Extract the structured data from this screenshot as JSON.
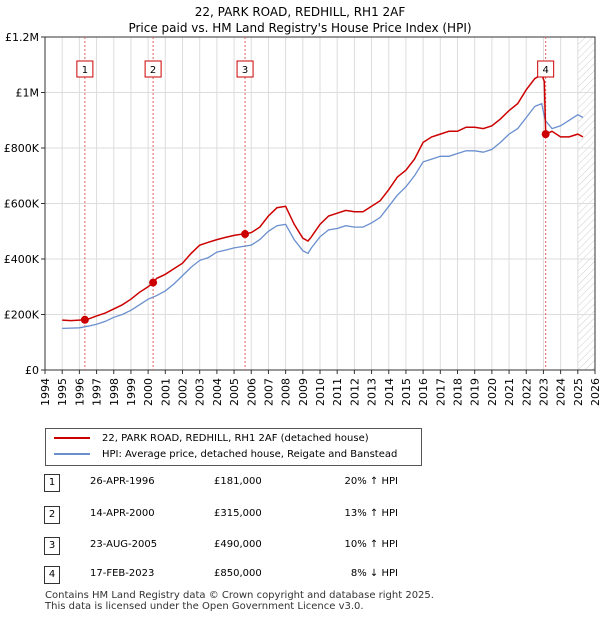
{
  "chart_data": {
    "type": "line",
    "title": "22, PARK ROAD, REDHILL, RH1 2AF",
    "subtitle": "Price paid vs. HM Land Registry's House Price Index (HPI)",
    "xlim": [
      1994,
      2026
    ],
    "ylim": [
      0,
      1200000
    ],
    "x_ticks": [
      "1994",
      "1995",
      "1996",
      "1997",
      "1998",
      "1999",
      "2000",
      "2001",
      "2002",
      "2003",
      "2004",
      "2005",
      "2006",
      "2007",
      "2008",
      "2009",
      "2010",
      "2011",
      "2012",
      "2013",
      "2014",
      "2015",
      "2016",
      "2017",
      "2018",
      "2019",
      "2020",
      "2021",
      "2022",
      "2023",
      "2024",
      "2025",
      "2026"
    ],
    "y_ticks": [
      {
        "value": 0,
        "label": "£0"
      },
      {
        "value": 200000,
        "label": "£200K"
      },
      {
        "value": 400000,
        "label": "£400K"
      },
      {
        "value": 600000,
        "label": "£600K"
      },
      {
        "value": 800000,
        "label": "£800K"
      },
      {
        "value": 1000000,
        "label": "£1M"
      },
      {
        "value": 1200000,
        "label": "£1.2M"
      }
    ],
    "hpi_series": {
      "name": "HPI: Average price, detached house, Reigate and Banstead",
      "color": "#6a8fcf",
      "x": [
        1995.0,
        1995.5,
        1996.0,
        1996.5,
        1997.0,
        1997.5,
        1998.0,
        1998.5,
        1999.0,
        1999.5,
        2000.0,
        2000.5,
        2001.0,
        2001.5,
        2002.0,
        2002.5,
        2003.0,
        2003.5,
        2004.0,
        2004.5,
        2005.0,
        2005.5,
        2006.0,
        2006.5,
        2007.0,
        2007.5,
        2008.0,
        2008.5,
        2009.0,
        2009.3,
        2009.5,
        2010.0,
        2010.5,
        2011.0,
        2011.5,
        2012.0,
        2012.5,
        2013.0,
        2013.5,
        2014.0,
        2014.5,
        2015.0,
        2015.5,
        2016.0,
        2016.5,
        2017.0,
        2017.5,
        2018.0,
        2018.5,
        2019.0,
        2019.5,
        2020.0,
        2020.5,
        2021.0,
        2021.5,
        2022.0,
        2022.5,
        2022.9,
        2023.1,
        2023.5,
        2024.0,
        2024.5,
        2025.0,
        2025.3
      ],
      "values": [
        150000,
        151000,
        152000,
        158000,
        165000,
        175000,
        190000,
        200000,
        215000,
        235000,
        255000,
        268000,
        285000,
        310000,
        340000,
        370000,
        395000,
        405000,
        425000,
        432000,
        440000,
        445000,
        450000,
        470000,
        500000,
        520000,
        525000,
        470000,
        430000,
        420000,
        440000,
        480000,
        505000,
        510000,
        520000,
        515000,
        515000,
        530000,
        550000,
        590000,
        630000,
        660000,
        700000,
        750000,
        760000,
        770000,
        770000,
        780000,
        790000,
        790000,
        785000,
        795000,
        820000,
        850000,
        870000,
        910000,
        950000,
        960000,
        900000,
        870000,
        880000,
        900000,
        920000,
        910000
      ]
    },
    "property_series": {
      "name": "22, PARK ROAD, REDHILL, RH1 2AF (detached house)",
      "color": "#cc0000",
      "x": [
        1995.0,
        1995.5,
        1996.0,
        1996.32,
        1996.5,
        1997.0,
        1997.5,
        1998.0,
        1998.5,
        1999.0,
        1999.5,
        2000.0,
        2000.29,
        2000.5,
        2001.0,
        2001.5,
        2002.0,
        2002.5,
        2003.0,
        2003.5,
        2004.0,
        2004.5,
        2005.0,
        2005.5,
        2005.64,
        2006.0,
        2006.5,
        2007.0,
        2007.5,
        2008.0,
        2008.5,
        2009.0,
        2009.3,
        2009.5,
        2010.0,
        2010.5,
        2011.0,
        2011.5,
        2012.0,
        2012.5,
        2013.0,
        2013.5,
        2014.0,
        2014.5,
        2015.0,
        2015.5,
        2016.0,
        2016.5,
        2017.0,
        2017.5,
        2018.0,
        2018.5,
        2019.0,
        2019.5,
        2020.0,
        2020.5,
        2021.0,
        2021.5,
        2022.0,
        2022.5,
        2022.9,
        2023.05,
        2023.13,
        2023.5,
        2024.0,
        2024.5,
        2025.0,
        2025.3
      ],
      "values": [
        180000,
        178000,
        180000,
        181000,
        183000,
        195000,
        205000,
        220000,
        235000,
        255000,
        280000,
        300000,
        315000,
        330000,
        345000,
        365000,
        385000,
        420000,
        450000,
        460000,
        470000,
        478000,
        485000,
        490000,
        490000,
        495000,
        515000,
        555000,
        585000,
        590000,
        525000,
        475000,
        465000,
        480000,
        525000,
        555000,
        565000,
        575000,
        570000,
        570000,
        590000,
        610000,
        650000,
        695000,
        720000,
        760000,
        820000,
        840000,
        850000,
        860000,
        860000,
        875000,
        875000,
        870000,
        880000,
        905000,
        935000,
        960000,
        1010000,
        1050000,
        1065000,
        1040000,
        850000,
        860000,
        840000,
        840000,
        850000,
        840000
      ]
    },
    "transactions": [
      {
        "num": "1",
        "x": 1996.32,
        "price": 181000,
        "date": "26-APR-1996",
        "price_label": "£181,000",
        "hpi": "20% ↑ HPI"
      },
      {
        "num": "2",
        "x": 2000.29,
        "price": 315000,
        "date": "14-APR-2000",
        "price_label": "£315,000",
        "hpi": "13% ↑ HPI"
      },
      {
        "num": "3",
        "x": 2005.64,
        "price": 490000,
        "date": "23-AUG-2005",
        "price_label": "£490,000",
        "hpi": "10% ↑ HPI"
      },
      {
        "num": "4",
        "x": 2023.13,
        "price": 850000,
        "date": "17-FEB-2023",
        "price_label": "£850,000",
        "hpi": "8% ↓ HPI"
      }
    ],
    "future_from": 2025.0
  },
  "footer": {
    "line1": "Contains HM Land Registry data © Crown copyright and database right 2025.",
    "line2": "This data is licensed under the Open Government Licence v3.0."
  },
  "colors": {
    "property": "#cc0000",
    "hpi": "#6a8fcf",
    "grid": "#dddddd",
    "marker_line": "#e06060"
  }
}
